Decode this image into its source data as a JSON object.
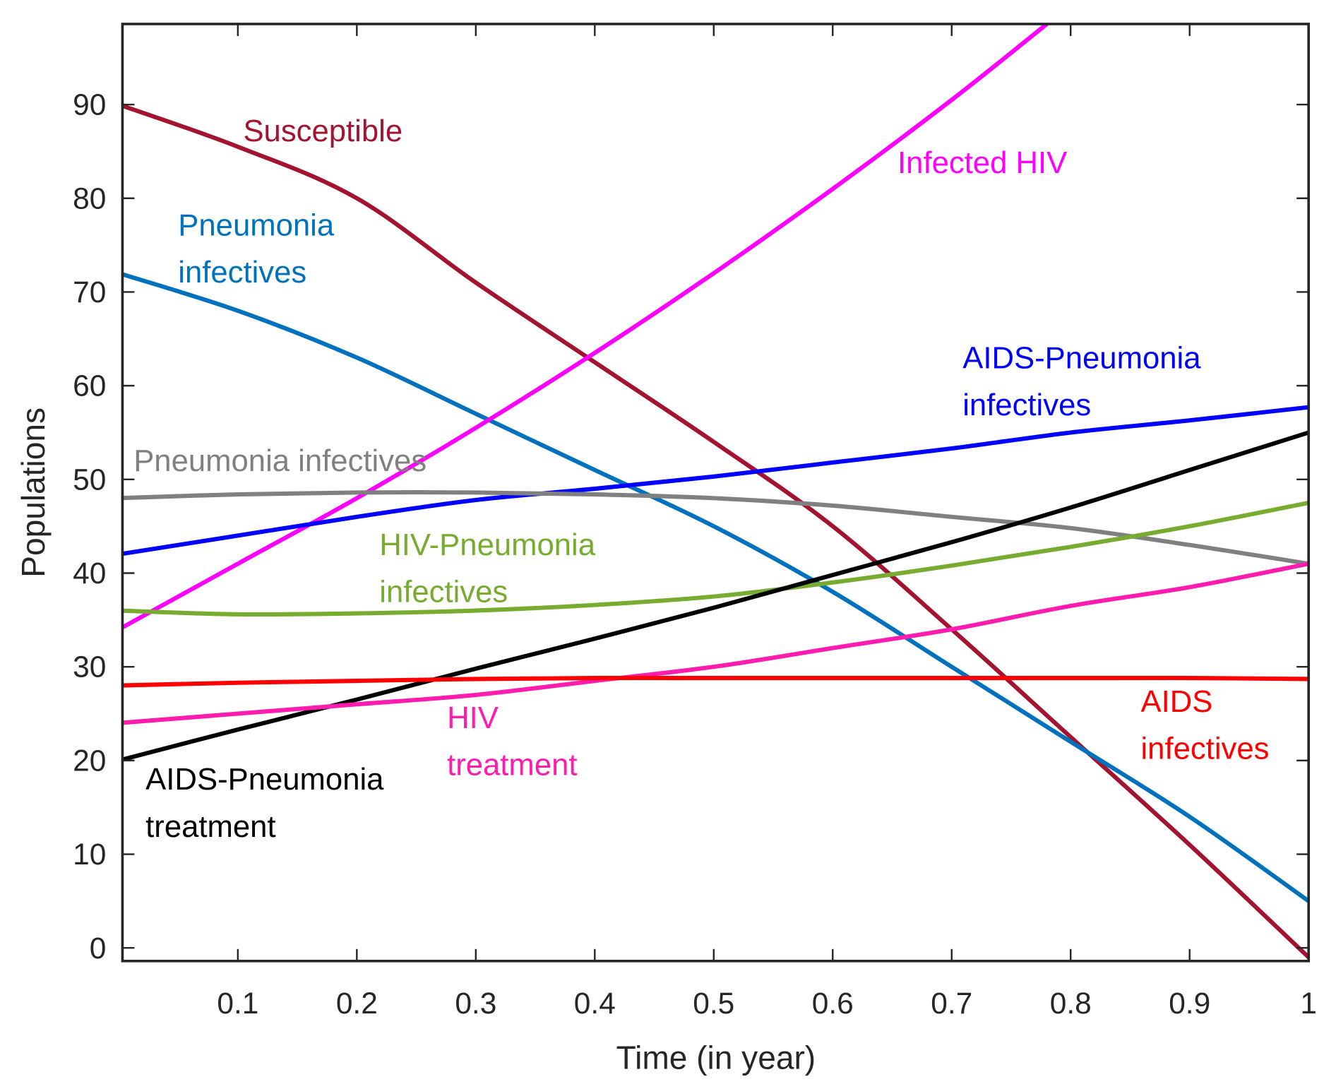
{
  "chart_data": {
    "type": "line",
    "title": "",
    "xlabel": "Time (in year)",
    "ylabel": "Populations",
    "xlim": [
      0.003,
      1
    ],
    "ylim": [
      -1.4,
      98.6
    ],
    "xticks": [
      "0.1",
      "0.2",
      "0.3",
      "0.4",
      "0.5",
      "0.6",
      "0.7",
      "0.8",
      "0.9",
      "1"
    ],
    "yticks": [
      "0",
      "10",
      "20",
      "30",
      "40",
      "50",
      "60",
      "70",
      "80",
      "90"
    ],
    "grid": false,
    "legend": "none (inline labels)",
    "x": [
      0,
      0.1,
      0.2,
      0.3,
      0.4,
      0.5,
      0.6,
      0.7,
      0.8,
      0.9,
      1
    ],
    "series": [
      {
        "name": "Susceptible",
        "label_lines": [
          "Susceptible"
        ],
        "color": "#A2142F",
        "values": [
          90,
          85.5,
          80,
          71,
          62.5,
          54,
          45,
          34,
          22.5,
          11,
          -1
        ]
      },
      {
        "name": "Pneumonia infectives (blue)",
        "label_lines": [
          "Pneumonia",
          "infectives"
        ],
        "color": "#0072BD",
        "values": [
          72,
          68,
          63,
          57,
          51,
          45,
          38,
          30,
          22,
          14,
          5
        ]
      },
      {
        "name": "Infected HIV",
        "label_lines": [
          "Infected HIV"
        ],
        "color": "#FF00FF",
        "x": [
          0,
          0.1,
          0.2,
          0.3,
          0.4,
          0.5,
          0.6,
          0.7,
          0.78
        ],
        "values": [
          34,
          41,
          48,
          55.5,
          63.5,
          72,
          81,
          90.5,
          98.6
        ]
      },
      {
        "name": "AIDS-Pneumonia infectives",
        "label_lines": [
          "AIDS-Pneumonia",
          "infectives"
        ],
        "color": "#0000FF",
        "values": [
          42,
          44,
          46,
          47.8,
          49,
          50.3,
          51.8,
          53.3,
          55,
          56.3,
          57.7
        ]
      },
      {
        "name": "Pneumonia infectives (gray)",
        "label_lines": [
          "Pneumonia infectives"
        ],
        "color": "#808080",
        "values": [
          48,
          48.4,
          48.6,
          48.6,
          48.4,
          48,
          47.2,
          46,
          44.8,
          43,
          41
        ]
      },
      {
        "name": "HIV-Pneumonia infectives",
        "label_lines": [
          "HIV-Pneumonia",
          "infectives"
        ],
        "color": "#77AC30",
        "values": [
          36,
          35.6,
          35.7,
          36,
          36.6,
          37.5,
          39,
          40.8,
          42.8,
          45,
          47.5
        ]
      },
      {
        "name": "AIDS-Pneumonia treatment",
        "label_lines": [
          "AIDS-Pneumonia",
          "treatment"
        ],
        "color": "#000000",
        "values": [
          20,
          23.3,
          26.5,
          29.8,
          33,
          36.3,
          39.8,
          43.3,
          47,
          51,
          55
        ]
      },
      {
        "name": "HIV treatment",
        "label_lines": [
          "HIV",
          "treatment"
        ],
        "color": "#FF1CAE",
        "values": [
          24,
          25,
          26,
          27,
          28.5,
          30,
          32,
          34,
          36.5,
          38.5,
          41
        ]
      },
      {
        "name": "AIDS infectives",
        "label_lines": [
          "AIDS",
          "infectives"
        ],
        "color": "#FF0000",
        "values": [
          28,
          28.3,
          28.5,
          28.7,
          28.8,
          28.8,
          28.8,
          28.8,
          28.8,
          28.8,
          28.7
        ]
      }
    ]
  }
}
